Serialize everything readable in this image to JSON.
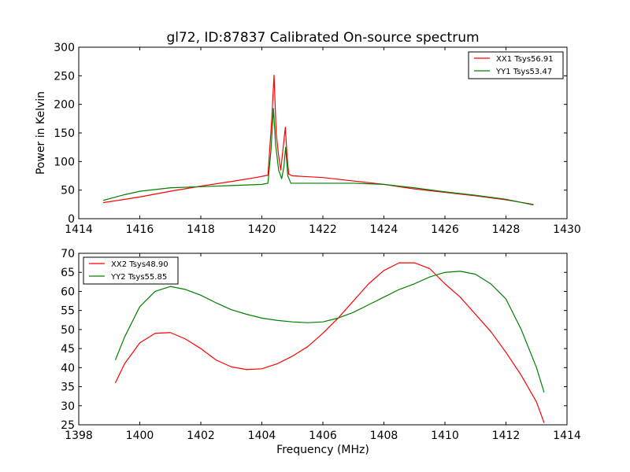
{
  "figure": {
    "title": "gl72, ID:87837 Calibrated On-source spectrum",
    "xlabel": "Frequency (MHz)"
  },
  "colors": {
    "red": "#ff0000",
    "green": "#008000"
  },
  "chart_data": [
    {
      "type": "line",
      "ylabel": "Power in Kelvin",
      "xlabel": "",
      "xlim": [
        1414,
        1430
      ],
      "ylim": [
        0,
        300
      ],
      "xticks": [
        1414,
        1416,
        1418,
        1420,
        1422,
        1424,
        1426,
        1428,
        1430
      ],
      "yticks": [
        0,
        50,
        100,
        150,
        200,
        250,
        300
      ],
      "grid": false,
      "legend_position": "top-right",
      "series": [
        {
          "name": "XX1 Tsys56.91",
          "color": "#ff0000",
          "x": [
            1414.8,
            1416.0,
            1417.0,
            1418.0,
            1419.0,
            1419.8,
            1420.2,
            1420.32,
            1420.4,
            1420.47,
            1420.55,
            1420.62,
            1420.7,
            1420.77,
            1420.82,
            1420.88,
            1421.0,
            1422.0,
            1423.0,
            1424.0,
            1425.0,
            1426.0,
            1427.0,
            1428.0,
            1428.9
          ],
          "y": [
            28,
            38,
            48,
            57,
            65,
            72,
            76,
            170,
            251,
            150,
            110,
            85,
            125,
            160,
            115,
            78,
            75,
            72,
            66,
            60,
            52,
            46,
            40,
            33,
            25
          ]
        },
        {
          "name": "YY1 Tsys53.47",
          "color": "#008000",
          "x": [
            1414.8,
            1415.5,
            1416.0,
            1417.0,
            1418.0,
            1419.0,
            1420.0,
            1420.2,
            1420.3,
            1420.38,
            1420.45,
            1420.55,
            1420.65,
            1420.72,
            1420.78,
            1420.85,
            1420.95,
            1422.0,
            1423.0,
            1424.0,
            1425.0,
            1426.0,
            1427.0,
            1428.0,
            1428.9
          ],
          "y": [
            32,
            42,
            48,
            54,
            56,
            58,
            60,
            62,
            120,
            193,
            130,
            85,
            70,
            90,
            125,
            75,
            62,
            62,
            62,
            60,
            54,
            47,
            41,
            34,
            24
          ]
        }
      ]
    },
    {
      "type": "line",
      "ylabel": "",
      "xlabel": "Frequency (MHz)",
      "xlim": [
        1398,
        1414
      ],
      "ylim": [
        25,
        70
      ],
      "xticks": [
        1398,
        1400,
        1402,
        1404,
        1406,
        1408,
        1410,
        1412,
        1414
      ],
      "yticks": [
        25,
        30,
        35,
        40,
        45,
        50,
        55,
        60,
        65,
        70
      ],
      "grid": false,
      "legend_position": "top-left",
      "series": [
        {
          "name": "XX2 Tsys48.90",
          "color": "#ff0000",
          "x": [
            1399.2,
            1399.5,
            1400.0,
            1400.5,
            1401.0,
            1401.5,
            1402.0,
            1402.5,
            1403.0,
            1403.5,
            1404.0,
            1404.5,
            1405.0,
            1405.5,
            1406.0,
            1406.5,
            1407.0,
            1407.5,
            1408.0,
            1408.5,
            1409.0,
            1409.5,
            1410.0,
            1410.5,
            1411.0,
            1411.5,
            1412.0,
            1412.5,
            1413.0,
            1413.25
          ],
          "y": [
            36,
            41,
            46.5,
            49,
            49.2,
            47.5,
            45,
            42,
            40.2,
            39.5,
            39.7,
            41,
            43,
            45.5,
            49,
            53,
            57.5,
            62,
            65.5,
            67.5,
            67.5,
            66,
            62,
            58.5,
            54,
            49.5,
            44,
            38,
            31,
            25.5
          ]
        },
        {
          "name": "YY2 Tsys55.85",
          "color": "#008000",
          "x": [
            1399.2,
            1399.5,
            1400.0,
            1400.5,
            1401.0,
            1401.5,
            1402.0,
            1402.5,
            1403.0,
            1403.5,
            1404.0,
            1404.5,
            1405.0,
            1405.5,
            1406.0,
            1406.5,
            1407.0,
            1407.5,
            1408.0,
            1408.5,
            1409.0,
            1409.5,
            1410.0,
            1410.5,
            1411.0,
            1411.5,
            1412.0,
            1412.5,
            1413.0,
            1413.25
          ],
          "y": [
            42,
            48,
            56,
            60,
            61.3,
            60.5,
            59,
            57,
            55.2,
            54,
            53,
            52.4,
            52,
            51.8,
            52,
            53,
            54.5,
            56.5,
            58.5,
            60.5,
            62,
            63.8,
            65,
            65.3,
            64.5,
            62,
            58,
            50,
            40,
            33.5
          ]
        }
      ]
    }
  ]
}
